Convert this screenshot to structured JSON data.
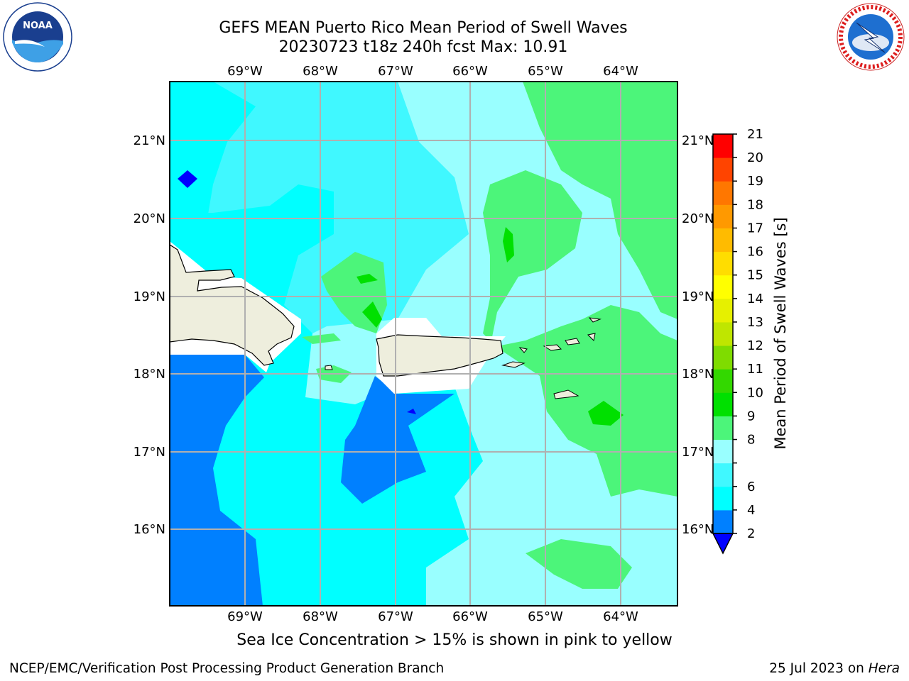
{
  "header": {
    "title_line1": "GEFS MEAN Puerto Rico Mean Period of Swell Waves",
    "title_line2": "20230723 t18z 240h fcst   Max: 10.91"
  },
  "logos": {
    "left": {
      "name": "noaa-logo",
      "text": "NOAA",
      "ring_text": "NATIONAL OCEANIC AND ATMOSPHERIC ADMINISTRATION · U.S. DEPARTMENT OF COMMERCE"
    },
    "right": {
      "name": "nws-logo",
      "ring_text": "NATIONAL WEATHER SERVICE"
    }
  },
  "map": {
    "lon_range": [
      -70.0,
      -63.25
    ],
    "lat_range": [
      15.0,
      21.75
    ],
    "lon_ticks": [
      "69°W",
      "68°W",
      "67°W",
      "66°W",
      "65°W",
      "64°W"
    ],
    "lat_ticks_left": [
      "21°N",
      "20°N",
      "19°N",
      "18°N",
      "17°N",
      "16°N"
    ],
    "lat_ticks_right": [
      "21°N",
      "20°N",
      "19°N",
      "18°N",
      "17°N",
      "16°N"
    ],
    "field": "mean period of swell waves (s)",
    "dominant_levels": {
      "west_south": "2-4",
      "central": "4-6",
      "east": "8-9",
      "northeast_patches": "9-10"
    },
    "islands": [
      "Hispaniola (east)",
      "Puerto Rico",
      "Virgin Islands"
    ]
  },
  "colorbar": {
    "label": "Mean Period of Swell Waves [s]",
    "levels": [
      "2",
      "4",
      "6",
      "7",
      "8",
      "9",
      "10",
      "11",
      "12",
      "13",
      "14",
      "15",
      "16",
      "17",
      "18",
      "19",
      "20",
      "21"
    ],
    "tick_labels": [
      "2",
      "4",
      "6",
      "8",
      "9",
      "10",
      "11",
      "12",
      "13",
      "14",
      "15",
      "16",
      "17",
      "18",
      "19",
      "20",
      "21"
    ],
    "colors": [
      "#0080ff",
      "#00ffff",
      "#40f8ff",
      "#99ffff",
      "#4cf57a",
      "#00e000",
      "#33d800",
      "#7fdc00",
      "#bfe600",
      "#e6f000",
      "#ffff00",
      "#ffdd00",
      "#ffbb00",
      "#ff9900",
      "#ff7700",
      "#ff4400",
      "#ff0000"
    ],
    "under_color": "#0000ff"
  },
  "note": "Sea Ice Concentration > 15% is shown in pink to yellow",
  "footer": {
    "left": "NCEP/EMC/Verification Post Processing Product Generation Branch",
    "right_date": "25 Jul 2023 on ",
    "right_host": "Hera"
  }
}
